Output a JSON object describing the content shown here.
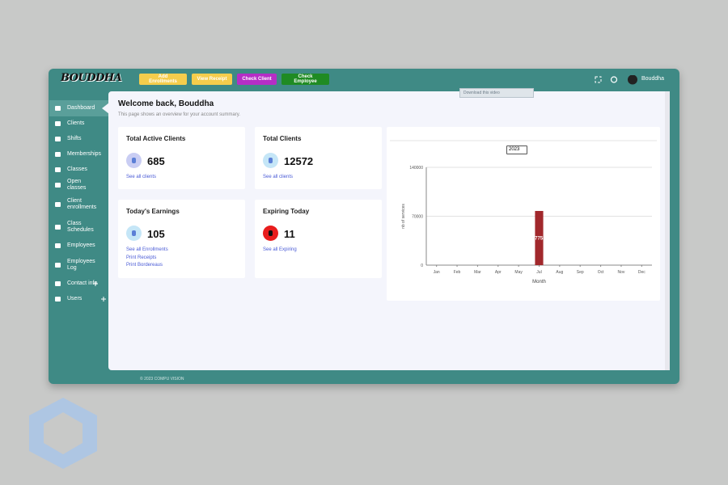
{
  "header": {
    "brand": "BOUDDHA",
    "buttons": [
      {
        "label": "Add Enrollments",
        "color": "#f5cd4c"
      },
      {
        "label": "View Receipt",
        "color": "#f5cd4c"
      },
      {
        "label": "Check Client",
        "color": "#b52ec6"
      },
      {
        "label": "Check Employee",
        "color": "#1f8b23"
      }
    ],
    "user": "Bouddha"
  },
  "sidebar": [
    "Dashboard",
    "Clients",
    "Shifts",
    "Memberships",
    "Classes",
    "Open classes",
    "Client enrollments",
    "Class Schedules",
    "Employees",
    "Employees Log",
    "Contact info",
    "Users"
  ],
  "welcome": {
    "title": "Welcome back, Bouddha",
    "subtitle": "This page shows an overview for your account summary."
  },
  "overlay": "Download this video",
  "cards": [
    {
      "title": "Total Active Clients",
      "value": 685,
      "icon_color": "#c9cdf3",
      "links": [
        "See all clients"
      ]
    },
    {
      "title": "Total Clients",
      "value": 12572,
      "icon_color": "#c5e6f7",
      "links": [
        "See all clients"
      ]
    },
    {
      "title": "Today's Earnings",
      "value": 105,
      "icon_color": "#c5e6f7",
      "links": [
        "See all Enrollments",
        "Print Receipts",
        "Print Bordereaus"
      ]
    },
    {
      "title": "Expiring Today",
      "value": 11,
      "icon_color": "#e81d1d",
      "links": [
        "See all Expiring"
      ]
    }
  ],
  "chart": {
    "type": "bar",
    "year": "2023",
    "y_label": "nb of services",
    "x_label": "Month",
    "categories": [
      "Jan",
      "Feb",
      "Mar",
      "Apr",
      "May",
      "Jul",
      "Aug",
      "Sep",
      "Oct",
      "Nov",
      "Dec"
    ],
    "values": [
      0,
      0,
      0,
      0,
      0,
      77550,
      0,
      0,
      0,
      0,
      0
    ],
    "value_labels": [
      null,
      null,
      null,
      null,
      null,
      "77550",
      null,
      null,
      null,
      null,
      null
    ],
    "color": "#a1282c",
    "ylim": [
      0,
      140000
    ],
    "yticks": [
      0,
      70000,
      140000
    ]
  },
  "footer": "© 2023 COMPU VISION"
}
